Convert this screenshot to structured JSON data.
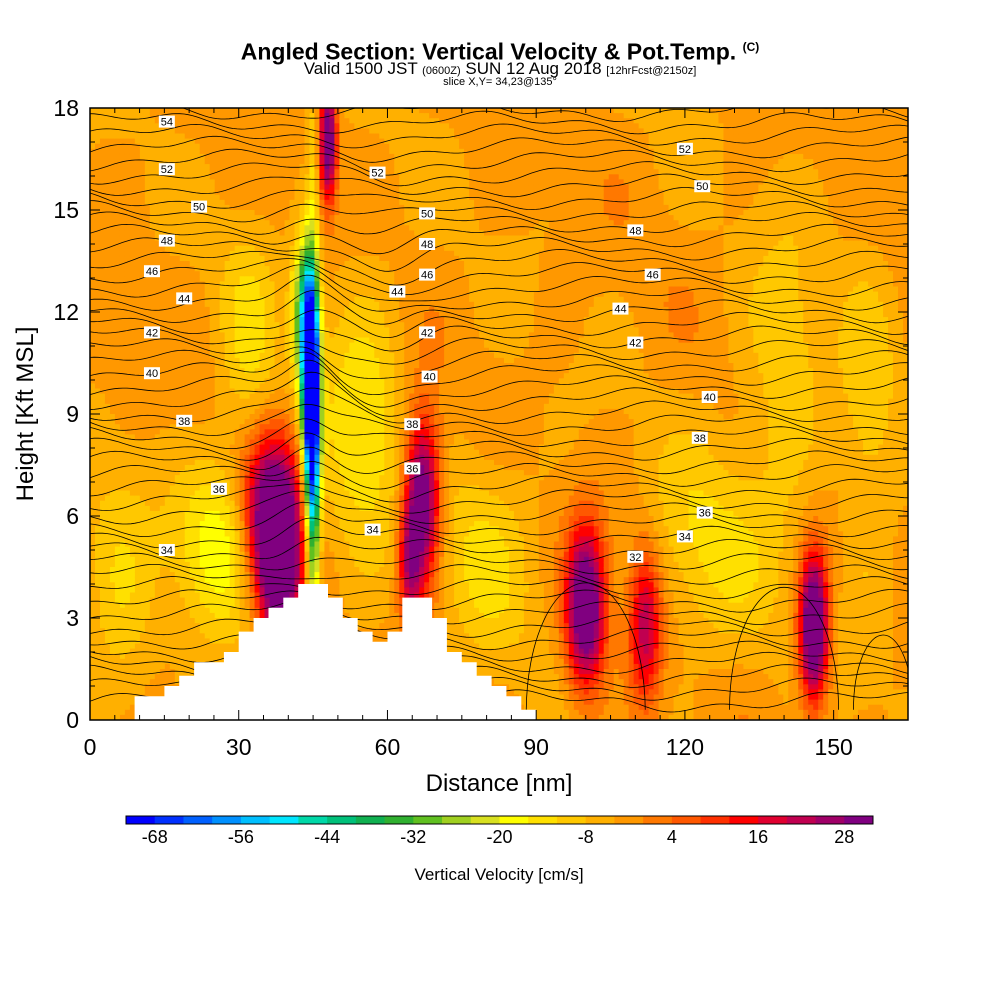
{
  "title": {
    "main": "Angled Section: Vertical Velocity & Pot.Temp.",
    "main_unit": "(C)",
    "valid_prefix": "Valid 1500 JST",
    "valid_utc": "(0600Z)",
    "valid_date": "SUN 12 Aug 2018",
    "valid_fcst": "[12hrFcst@2150z]",
    "slice": "slice X,Y= 34,23@135°"
  },
  "chart_data": {
    "type": "heatmap",
    "xlabel": "Distance [nm]",
    "ylabel": "Height [Kft MSL]",
    "xlim": [
      0,
      165
    ],
    "ylim": [
      0,
      18
    ],
    "x_ticks": [
      "0",
      "30",
      "60",
      "90",
      "120",
      "150"
    ],
    "y_ticks": [
      "0",
      "3",
      "6",
      "9",
      "12",
      "15",
      "18"
    ],
    "fill_field": "Vertical Velocity",
    "contour_field": "Potential Temperature",
    "colorbar": {
      "label": "Vertical Velocity [cm/s]",
      "tick_labels": [
        "-68",
        "-56",
        "-44",
        "-32",
        "-20",
        "-8",
        "4",
        "16",
        "28"
      ],
      "min": -72,
      "max": 32,
      "step": 4,
      "colors": [
        "#0000ff",
        "#0030ff",
        "#0060ff",
        "#0090ff",
        "#00bfff",
        "#00e6ff",
        "#00d8a8",
        "#00c07a",
        "#10b050",
        "#30b030",
        "#60c020",
        "#a0d020",
        "#d8e020",
        "#ffff00",
        "#ffe000",
        "#ffc800",
        "#ffb000",
        "#ff9800",
        "#ff7800",
        "#ff5800",
        "#ff3000",
        "#ff0000",
        "#e00030",
        "#c00050",
        "#a00068",
        "#800080"
      ]
    },
    "terrain": [
      [
        9,
        0
      ],
      [
        9,
        0.7
      ],
      [
        15,
        0.7
      ],
      [
        15,
        1
      ],
      [
        18,
        1
      ],
      [
        18,
        1.3
      ],
      [
        21,
        1.3
      ],
      [
        21,
        1.7
      ],
      [
        27,
        1.7
      ],
      [
        27,
        2
      ],
      [
        30,
        2
      ],
      [
        30,
        2.6
      ],
      [
        33,
        2.6
      ],
      [
        33,
        3
      ],
      [
        36,
        3
      ],
      [
        36,
        3.3
      ],
      [
        39,
        3.3
      ],
      [
        39,
        3.6
      ],
      [
        42,
        3.6
      ],
      [
        42,
        4
      ],
      [
        48,
        4
      ],
      [
        48,
        3.6
      ],
      [
        51,
        3.6
      ],
      [
        51,
        3
      ],
      [
        54,
        3
      ],
      [
        54,
        2.6
      ],
      [
        57,
        2.6
      ],
      [
        57,
        2.3
      ],
      [
        60,
        2.3
      ],
      [
        60,
        2.6
      ],
      [
        63,
        2.6
      ],
      [
        63,
        3.6
      ],
      [
        69,
        3.6
      ],
      [
        69,
        3
      ],
      [
        72,
        3
      ],
      [
        72,
        2
      ],
      [
        75,
        2
      ],
      [
        75,
        1.7
      ],
      [
        78,
        1.7
      ],
      [
        78,
        1.3
      ],
      [
        81,
        1.3
      ],
      [
        81,
        1
      ],
      [
        84,
        1
      ],
      [
        84,
        0.7
      ],
      [
        87,
        0.7
      ],
      [
        87,
        0.3
      ],
      [
        90,
        0.3
      ],
      [
        90,
        0
      ]
    ],
    "contour_labels": [
      {
        "text": "54",
        "x": 15.5,
        "y": 17.6
      },
      {
        "text": "52",
        "x": 15.5,
        "y": 16.2
      },
      {
        "text": "50",
        "x": 22,
        "y": 15.1
      },
      {
        "text": "48",
        "x": 15.5,
        "y": 14.1
      },
      {
        "text": "46",
        "x": 12.5,
        "y": 13.2
      },
      {
        "text": "44",
        "x": 19,
        "y": 12.4
      },
      {
        "text": "42",
        "x": 12.5,
        "y": 11.4
      },
      {
        "text": "40",
        "x": 12.5,
        "y": 10.2
      },
      {
        "text": "38",
        "x": 19,
        "y": 8.8
      },
      {
        "text": "36",
        "x": 26,
        "y": 6.8
      },
      {
        "text": "34",
        "x": 15.5,
        "y": 5
      },
      {
        "text": "52",
        "x": 58,
        "y": 16.1
      },
      {
        "text": "50",
        "x": 68,
        "y": 14.9
      },
      {
        "text": "48",
        "x": 68,
        "y": 14
      },
      {
        "text": "46",
        "x": 68,
        "y": 13.1
      },
      {
        "text": "44",
        "x": 62,
        "y": 12.6
      },
      {
        "text": "42",
        "x": 68,
        "y": 11.4
      },
      {
        "text": "40",
        "x": 68.5,
        "y": 10.1
      },
      {
        "text": "38",
        "x": 65,
        "y": 8.7
      },
      {
        "text": "36",
        "x": 65,
        "y": 7.4
      },
      {
        "text": "34",
        "x": 57,
        "y": 5.6
      },
      {
        "text": "52",
        "x": 120,
        "y": 16.8
      },
      {
        "text": "50",
        "x": 123.5,
        "y": 15.7
      },
      {
        "text": "48",
        "x": 110,
        "y": 14.4
      },
      {
        "text": "46",
        "x": 113.5,
        "y": 13.1
      },
      {
        "text": "44",
        "x": 107,
        "y": 12.1
      },
      {
        "text": "42",
        "x": 110,
        "y": 11.1
      },
      {
        "text": "40",
        "x": 125,
        "y": 9.5
      },
      {
        "text": "38",
        "x": 123,
        "y": 8.3
      },
      {
        "text": "36",
        "x": 124,
        "y": 6.1
      },
      {
        "text": "34",
        "x": 120,
        "y": 5.4
      },
      {
        "text": "32",
        "x": 110,
        "y": 4.8
      }
    ]
  }
}
